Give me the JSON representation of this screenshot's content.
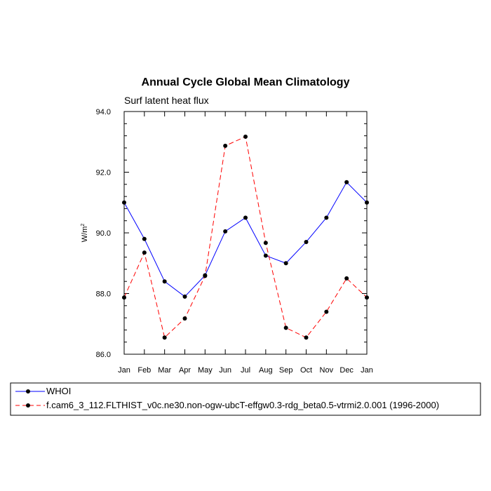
{
  "chart_data": {
    "type": "line",
    "title": "Annual Cycle Global Mean Climatology",
    "subtitle": "Surf latent heat flux",
    "ylabel": "W/m",
    "ylabel_sup": "2",
    "xlabel": "",
    "categories": [
      "Jan",
      "Feb",
      "Mar",
      "Apr",
      "May",
      "Jun",
      "Jul",
      "Aug",
      "Sep",
      "Oct",
      "Nov",
      "Dec",
      "Jan"
    ],
    "ylim": [
      86.0,
      94.0
    ],
    "yticks": [
      "86.0",
      "88.0",
      "90.0",
      "92.0",
      "94.0"
    ],
    "series": [
      {
        "name": "WHOI",
        "color": "#0000ff",
        "dash": "solid",
        "values": [
          91.0,
          89.8,
          88.4,
          87.9,
          88.6,
          90.05,
          90.5,
          89.25,
          89.0,
          89.7,
          90.5,
          91.67,
          91.0
        ]
      },
      {
        "name": "f.cam6_3_112.FLTHIST_v0c.ne30.non-ogw-ubcT-effgw0.3-rdg_beta0.5-vtrmi2.0.001 (1996-2000)",
        "color": "#ff0000",
        "dash": "dashed",
        "values": [
          87.87,
          89.35,
          86.55,
          87.18,
          88.58,
          92.87,
          93.17,
          89.67,
          86.87,
          86.55,
          87.4,
          88.5,
          87.87
        ]
      }
    ],
    "grid": false,
    "legend_position": "bottom"
  }
}
